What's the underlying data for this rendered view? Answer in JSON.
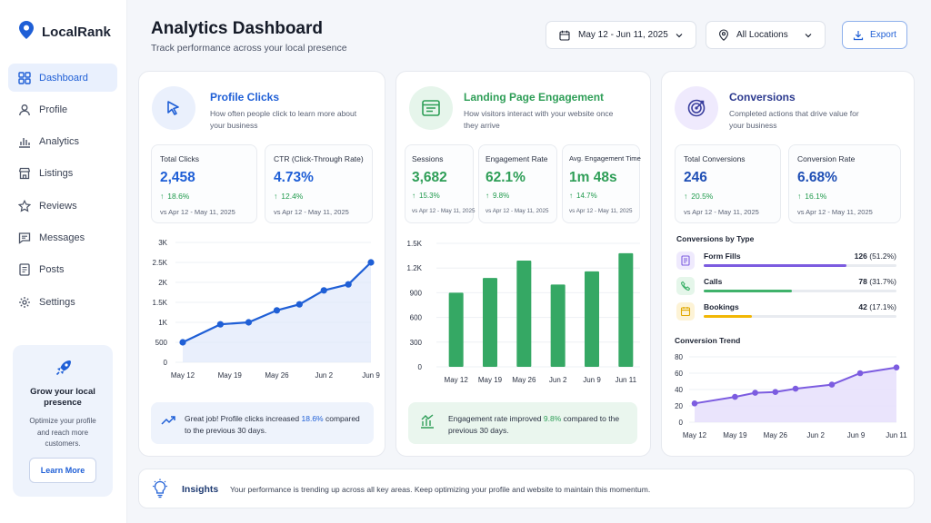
{
  "app": {
    "name": "LocalRank"
  },
  "sidebar": {
    "items": [
      {
        "label": "Dashboard",
        "icon": "dashboard-icon"
      },
      {
        "label": "Profile",
        "icon": "user-icon"
      },
      {
        "label": "Analytics",
        "icon": "bar-chart-icon"
      },
      {
        "label": "Listings",
        "icon": "store-icon"
      },
      {
        "label": "Reviews",
        "icon": "star-icon"
      },
      {
        "label": "Messages",
        "icon": "message-icon"
      },
      {
        "label": "Posts",
        "icon": "document-icon"
      },
      {
        "label": "Settings",
        "icon": "gear-icon"
      }
    ],
    "promo": {
      "title": "Grow your local presence",
      "text": "Optimize your profile and reach more customers.",
      "button": "Learn More"
    }
  },
  "header": {
    "title": "Analytics Dashboard",
    "subtitle": "Track performance across your local presence",
    "date_range": "May 12 - Jun 11, 2025",
    "location": "All Locations",
    "export_label": "Export"
  },
  "colors": {
    "blue": "#1f5fd6",
    "green": "#2e9e57",
    "purple": "#7c5ce0",
    "up": "#1f9a4c"
  },
  "profile_clicks": {
    "title": "Profile Clicks",
    "subtitle": "How often people click to learn more about your business",
    "stats": [
      {
        "label": "Total Clicks",
        "value": "2,458",
        "change": "18.6%",
        "compare": "vs Apr 12 - May 11, 2025"
      },
      {
        "label": "CTR (Click-Through Rate)",
        "value": "4.73%",
        "change": "12.4%",
        "compare": "vs Apr 12 - May 11, 2025"
      }
    ],
    "note": {
      "pre": "Great job! Profile clicks increased ",
      "highlight": "18.6%",
      "post": " compared to the previous 30 days."
    }
  },
  "engagement": {
    "title": "Landing Page Engagement",
    "subtitle": "How visitors interact with your website once they arrive",
    "stats": [
      {
        "label": "Sessions",
        "value": "3,682",
        "change": "15.3%",
        "compare": "vs Apr 12 - May 11, 2025"
      },
      {
        "label": "Engagement Rate",
        "value": "62.1%",
        "change": "9.8%",
        "compare": "vs Apr 12 - May 11, 2025"
      },
      {
        "label": "Avg. Engagement Time",
        "value": "1m 48s",
        "change": "14.7%",
        "compare": "vs Apr 12 - May 11, 2025"
      }
    ],
    "note": {
      "pre": "Engagement rate improved ",
      "highlight": "9.8%",
      "post": " compared to the previous 30 days."
    }
  },
  "conversions": {
    "title": "Conversions",
    "subtitle": "Completed actions that drive value for your business",
    "stats": [
      {
        "label": "Total Conversions",
        "value": "246",
        "change": "20.5%",
        "compare": "vs Apr 12 - May 11, 2025"
      },
      {
        "label": "Conversion Rate",
        "value": "6.68%",
        "change": "16.1%",
        "compare": "vs Apr 12 - May 11, 2025"
      }
    ],
    "by_type_title": "Conversions by Type",
    "types": [
      {
        "label": "Form Fills",
        "count": "126",
        "pct": "(51.2%)",
        "share": 0.512,
        "color": "#7c5ce0",
        "bg": "#efeafd",
        "icon": "form-icon"
      },
      {
        "label": "Calls",
        "count": "78",
        "pct": "(31.7%)",
        "share": 0.317,
        "color": "#3fb26b",
        "bg": "#e5f6ea",
        "icon": "phone-icon"
      },
      {
        "label": "Bookings",
        "count": "42",
        "pct": "(17.1%)",
        "share": 0.171,
        "color": "#f2b705",
        "bg": "#fdf3d6",
        "icon": "calendar-icon"
      }
    ],
    "trend_title": "Conversion Trend"
  },
  "insights": {
    "title": "Insights",
    "text": "Your performance is trending up across all key areas. Keep optimizing your profile and website to maintain this momentum."
  },
  "chart_data": [
    {
      "type": "line",
      "ylim": [
        0,
        3000
      ],
      "yticks": [
        "0",
        "500",
        "1K",
        "1.5K",
        "2K",
        "2.5K",
        "3K"
      ],
      "x_labels": [
        "May 12",
        "May 19",
        "May 26",
        "Jun 2",
        "Jun 9"
      ],
      "x": [
        0,
        1,
        1.75,
        2.5,
        3.1,
        3.75,
        4.4,
        5
      ],
      "values": [
        500,
        950,
        1000,
        1300,
        1450,
        1800,
        1950,
        2500
      ]
    },
    {
      "type": "bar",
      "ylim": [
        0,
        1500
      ],
      "yticks": [
        "0",
        "300",
        "600",
        "900",
        "1.2K",
        "1.5K"
      ],
      "categories": [
        "May 12",
        "May 19",
        "May 26",
        "Jun 2",
        "Jun 9",
        "Jun 11"
      ],
      "values": [
        900,
        1080,
        1290,
        1000,
        1160,
        1380
      ]
    },
    {
      "type": "area",
      "ylim": [
        0,
        80
      ],
      "yticks": [
        "0",
        "20",
        "40",
        "60",
        "80"
      ],
      "x_labels": [
        "May 12",
        "May 19",
        "May 26",
        "Jun 2",
        "Jun 9",
        "Jun 11"
      ],
      "x": [
        0,
        1,
        1.5,
        2,
        2.5,
        3.4,
        4.1,
        5
      ],
      "values": [
        23,
        31,
        36,
        37,
        41,
        46,
        60,
        67
      ]
    }
  ]
}
